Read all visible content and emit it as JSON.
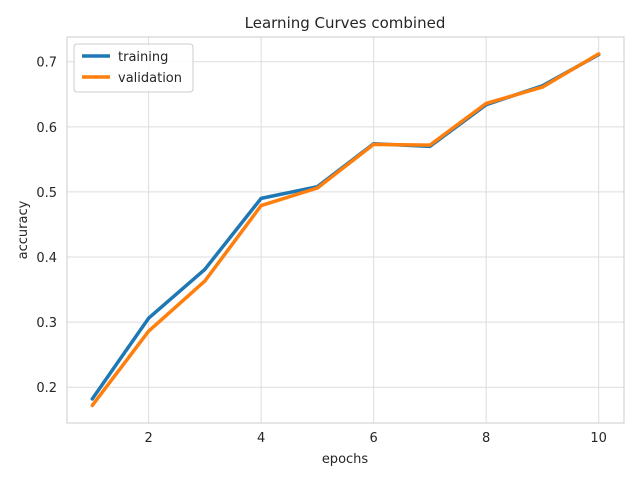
{
  "chart_data": {
    "type": "line",
    "title": "Learning Curves combined",
    "xlabel": "epochs",
    "ylabel": "accuracy",
    "x": [
      1,
      2,
      3,
      4,
      5,
      6,
      7,
      8,
      9,
      10
    ],
    "xticks": [
      2,
      4,
      6,
      8,
      10
    ],
    "yticks": [
      0.2,
      0.3,
      0.4,
      0.5,
      0.6,
      0.7
    ],
    "xlim": [
      0.55,
      10.45
    ],
    "ylim": [
      0.145,
      0.738
    ],
    "grid": true,
    "legend_position": "top-left",
    "series": [
      {
        "name": "training",
        "color": "#1f77b4",
        "values": [
          0.182,
          0.306,
          0.381,
          0.49,
          0.508,
          0.574,
          0.57,
          0.634,
          0.663,
          0.711
        ]
      },
      {
        "name": "validation",
        "color": "#ff7f0e",
        "values": [
          0.172,
          0.286,
          0.363,
          0.479,
          0.506,
          0.573,
          0.572,
          0.636,
          0.661,
          0.712
        ]
      }
    ]
  }
}
